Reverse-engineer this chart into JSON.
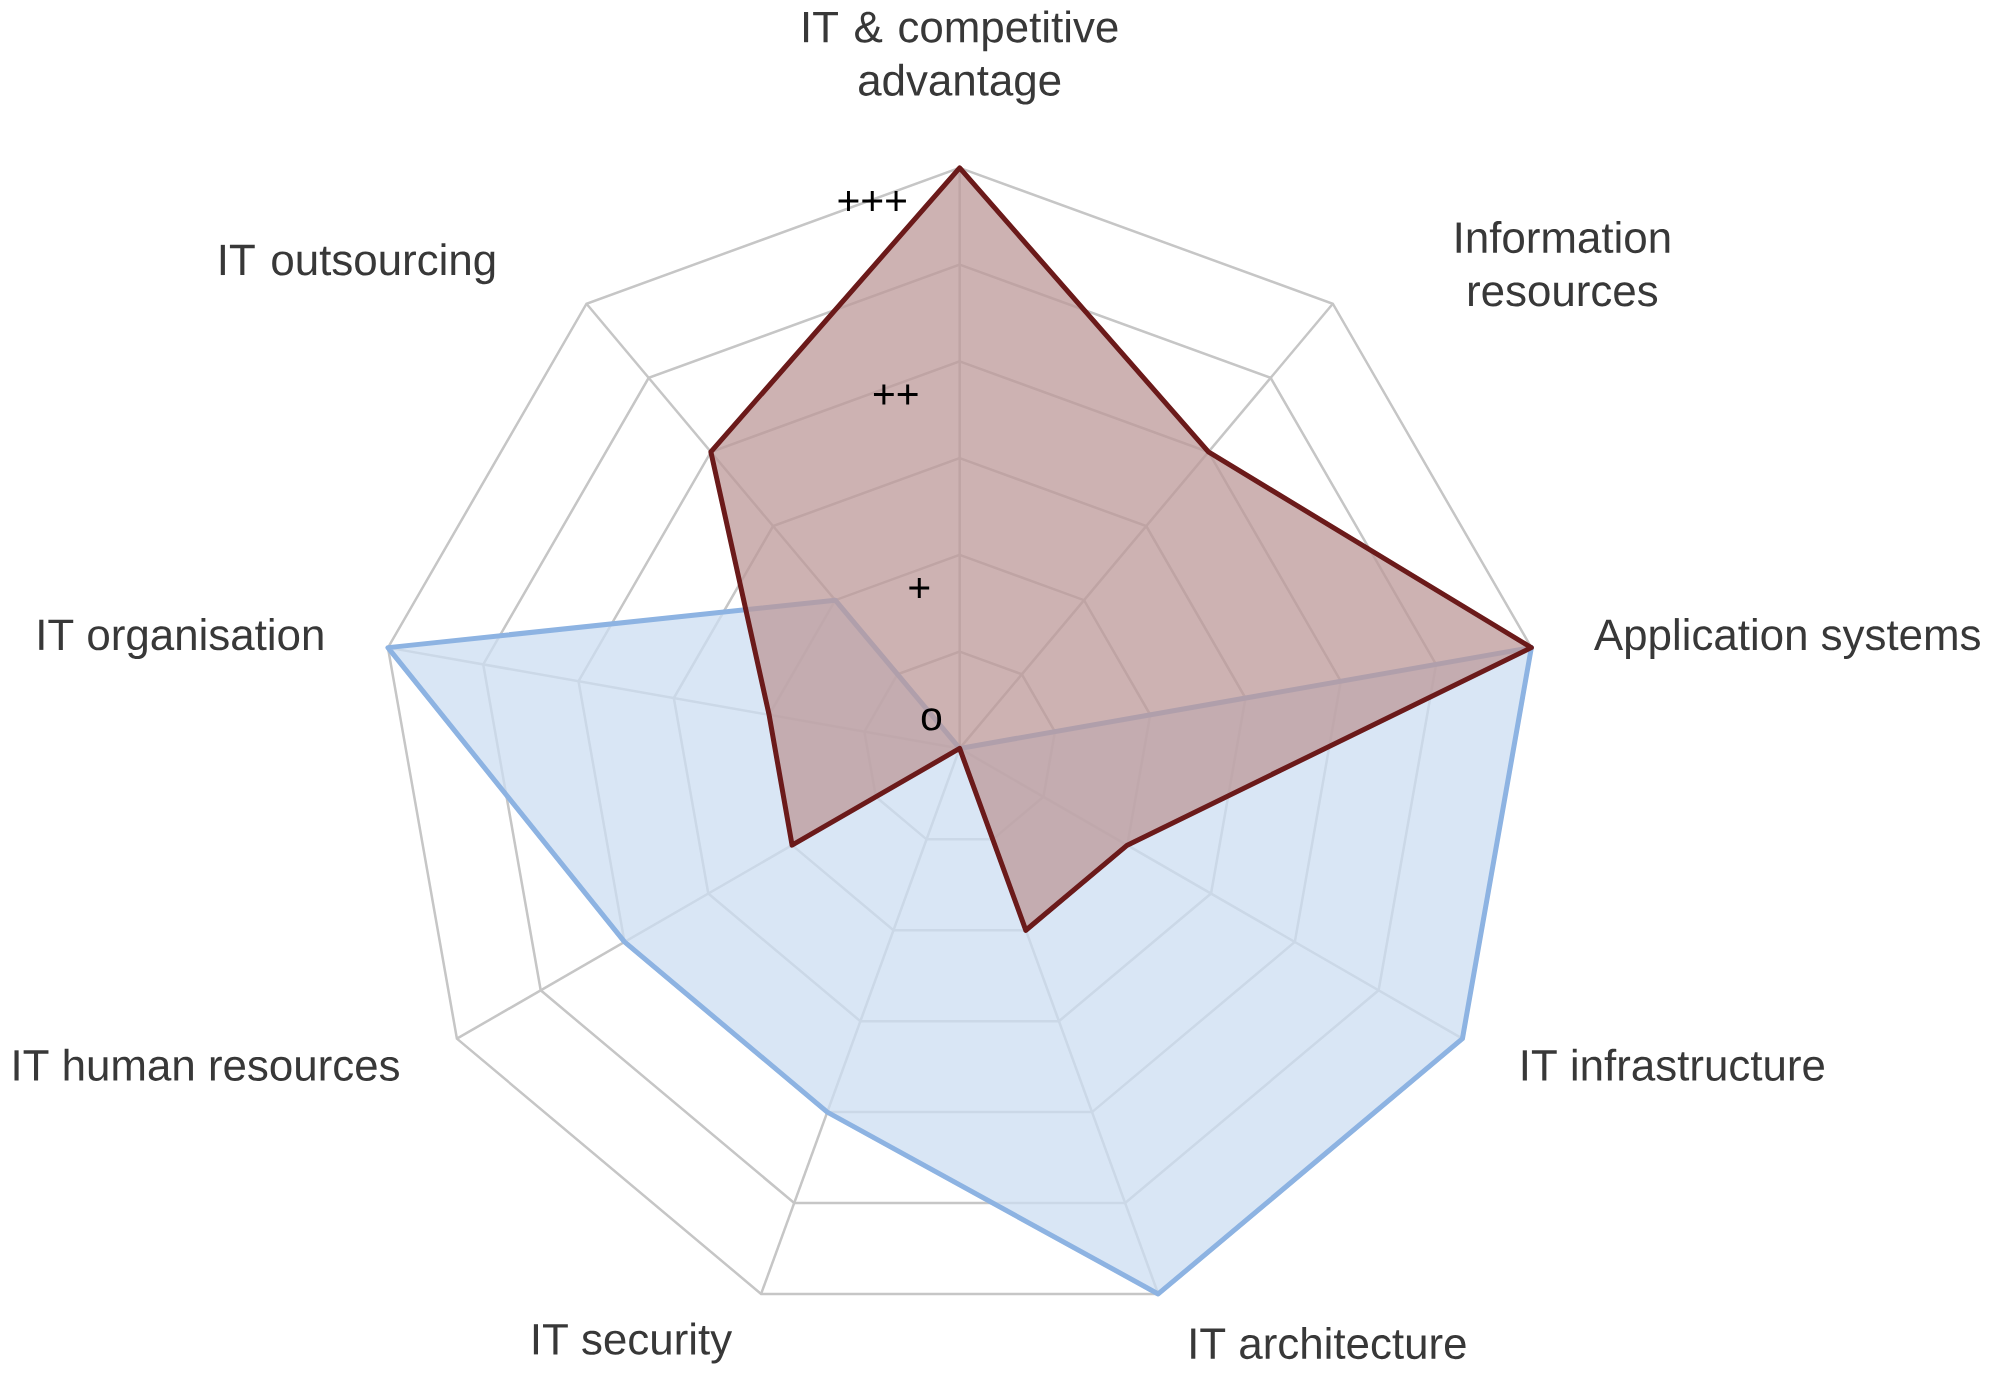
{
  "chart_data": {
    "type": "radar",
    "categories": [
      "IT & competitive advantage",
      "Information resources",
      "Application systems",
      "IT infrastructure",
      "IT architecture",
      "IT security",
      "IT human resources",
      "IT organisation",
      "IT outsourcing"
    ],
    "ylim": [
      0,
      6
    ],
    "yticks": [
      {
        "value": 0,
        "label": "o"
      },
      {
        "value": 2,
        "label": "+"
      },
      {
        "value": 4,
        "label": "++"
      },
      {
        "value": 6,
        "label": "+++"
      }
    ],
    "grid": true,
    "series": [
      {
        "color": "#6b1a1a",
        "values": [
          6,
          4,
          6,
          2,
          2,
          0,
          2,
          2,
          4
        ]
      },
      {
        "color": "#8db3e2",
        "values": [
          0,
          0,
          6,
          6,
          6,
          4,
          4,
          6,
          2
        ]
      }
    ]
  }
}
